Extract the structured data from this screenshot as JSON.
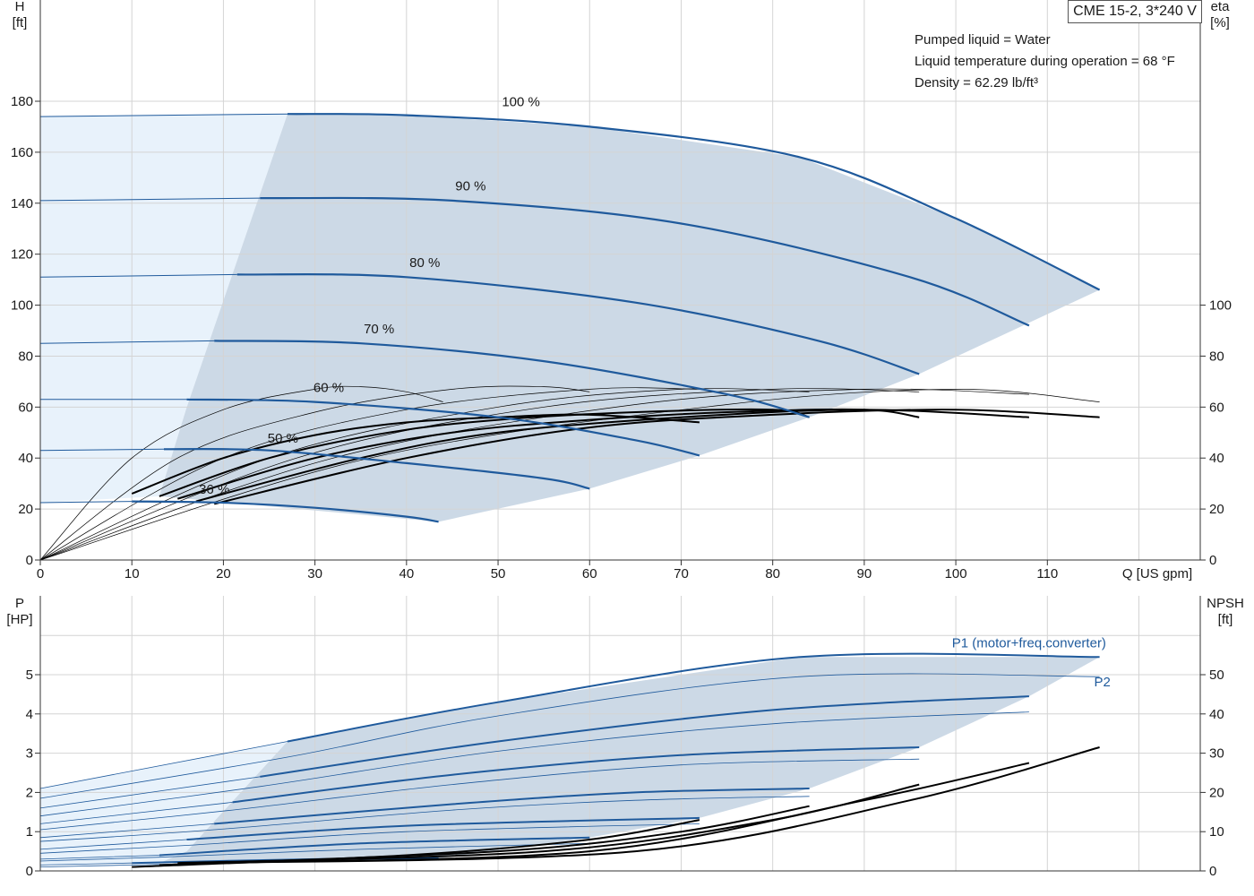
{
  "title": "CME 15-2, 3*240 V",
  "info": {
    "liquid": "Pumped liquid = Water",
    "temperature": "Liquid temperature during operation = 68 °F",
    "density": "Density = 62.29 lb/ft³"
  },
  "colors": {
    "curve": "#1f5a9c",
    "area": "#ccd9e6",
    "area_light": "#e8f2fb",
    "grid": "#d4d4d4",
    "eff": "#000000"
  },
  "chart_data": [
    {
      "type": "line",
      "name": "head-efficiency",
      "xlabel": "Q [US gpm]",
      "ylabel_left": "H",
      "ylabel_left_unit": "[ft]",
      "ylabel_right": "eta",
      "ylabel_right_unit": "[%]",
      "xlim": [
        0,
        126
      ],
      "xticks": [
        0,
        10,
        20,
        30,
        40,
        50,
        60,
        70,
        80,
        90,
        100,
        110
      ],
      "ylim_left": [
        0,
        180
      ],
      "yticks_left": [
        0,
        20,
        40,
        60,
        80,
        100,
        120,
        140,
        160,
        180
      ],
      "ylim_right": [
        0,
        100
      ],
      "yticks_right": [
        0,
        20,
        40,
        60,
        80,
        100
      ],
      "grid": true,
      "speed_labels": [
        {
          "text": "100 %",
          "x": 52.5,
          "y": 178
        },
        {
          "text": "90 %",
          "x": 47,
          "y": 145
        },
        {
          "text": "80 %",
          "x": 42,
          "y": 115
        },
        {
          "text": "70 %",
          "x": 37,
          "y": 89
        },
        {
          "text": "60 %",
          "x": 31.5,
          "y": 66
        },
        {
          "text": "50 %",
          "x": 26.5,
          "y": 46
        },
        {
          "text": "36 %",
          "x": 19,
          "y": 26
        }
      ],
      "series": [
        {
          "speed": 100,
          "x": [
            0,
            27,
            40,
            60,
            83,
            100,
            115.7
          ],
          "y": [
            174,
            175,
            174.5,
            170,
            158,
            134,
            106
          ]
        },
        {
          "speed": 90,
          "x": [
            0,
            24,
            45,
            70,
            95,
            108
          ],
          "y": [
            141,
            142,
            141,
            132,
            111,
            92
          ]
        },
        {
          "speed": 80,
          "x": [
            0,
            21.5,
            40,
            65,
            85,
            96
          ],
          "y": [
            111,
            112,
            111,
            101,
            86,
            73
          ]
        },
        {
          "speed": 70,
          "x": [
            0,
            19,
            35,
            55,
            75,
            84
          ],
          "y": [
            85,
            86,
            85,
            78,
            65,
            56
          ]
        },
        {
          "speed": 60,
          "x": [
            0,
            16,
            30,
            50,
            65,
            72
          ],
          "y": [
            63,
            63,
            62,
            56,
            47,
            41
          ]
        },
        {
          "speed": 50,
          "x": [
            0,
            13.5,
            25,
            40,
            55,
            60
          ],
          "y": [
            43,
            43.5,
            43,
            38,
            32,
            28
          ]
        },
        {
          "speed": 36,
          "x": [
            0,
            10,
            20,
            30,
            40,
            43.5
          ],
          "y": [
            22.5,
            23,
            22.5,
            20.5,
            17,
            15
          ]
        }
      ],
      "eff_bold": [
        {
          "x": [
            10,
            20,
            30,
            40,
            50,
            60,
            72
          ],
          "y": [
            26,
            40,
            49,
            54,
            56,
            57,
            54
          ]
        },
        {
          "x": [
            13,
            25,
            38,
            50,
            65,
            80,
            84
          ],
          "y": [
            25,
            40,
            50,
            55,
            58,
            59,
            56
          ]
        },
        {
          "x": [
            15,
            30,
            45,
            60,
            75,
            90,
            96
          ],
          "y": [
            24,
            40,
            50,
            55,
            58,
            59,
            56
          ]
        },
        {
          "x": [
            17,
            35,
            50,
            70,
            90,
            108
          ],
          "y": [
            23,
            40,
            50,
            56,
            59,
            56
          ]
        },
        {
          "x": [
            19,
            40,
            60,
            80,
            100,
            115.7
          ],
          "y": [
            22,
            40,
            52,
            57,
            59,
            56
          ]
        }
      ],
      "eff_thin": [
        {
          "x": [
            0,
            10,
            20,
            30,
            35,
            40,
            44
          ],
          "y": [
            0,
            40,
            59,
            67,
            68,
            66,
            62
          ]
        },
        {
          "x": [
            0,
            15,
            30,
            45,
            55,
            60
          ],
          "y": [
            0,
            40,
            58,
            67,
            68,
            66
          ]
        },
        {
          "x": [
            0,
            20,
            40,
            60,
            72
          ],
          "y": [
            0,
            40,
            59,
            67,
            67
          ]
        },
        {
          "x": [
            0,
            25,
            50,
            70,
            84
          ],
          "y": [
            0,
            40,
            60,
            67,
            66
          ]
        },
        {
          "x": [
            0,
            28,
            55,
            80,
            96
          ],
          "y": [
            0,
            40,
            60,
            67,
            66
          ]
        },
        {
          "x": [
            0,
            32,
            65,
            90,
            108
          ],
          "y": [
            0,
            40,
            61,
            67,
            65
          ]
        },
        {
          "x": [
            0,
            36,
            75,
            100,
            115.7
          ],
          "y": [
            0,
            40,
            61,
            67,
            62
          ]
        }
      ],
      "area": {
        "x": [
          16,
          27,
          40,
          60,
          83,
          100,
          115.7,
          96,
          84,
          72,
          60,
          43.5,
          13
        ],
        "y": [
          60,
          175,
          174.5,
          170,
          158,
          134,
          106,
          73,
          56,
          41,
          28,
          15,
          25
        ]
      }
    },
    {
      "type": "line",
      "name": "power-npsh",
      "ylabel_left": "P",
      "ylabel_left_unit": "[HP]",
      "ylabel_right": "NPSH",
      "ylabel_right_unit": "[ft]",
      "ylim_left": [
        0,
        6
      ],
      "yticks_left": [
        0,
        1,
        2,
        3,
        4,
        5
      ],
      "ylim_right": [
        0,
        60
      ],
      "yticks_right": [
        0,
        10,
        20,
        30,
        40,
        50
      ],
      "grid": true,
      "labels": [
        {
          "text": "P1 (motor+freq.converter)",
          "x": 108,
          "y": 5.7
        },
        {
          "text": "P2",
          "x": 116,
          "y": 4.7
        }
      ],
      "p1": [
        {
          "x": [
            0,
            27,
            50,
            83,
            115.7
          ],
          "y": [
            2.1,
            3.3,
            4.3,
            5.45,
            5.45
          ]
        },
        {
          "x": [
            0,
            24,
            50,
            80,
            108
          ],
          "y": [
            1.6,
            2.4,
            3.3,
            4.1,
            4.45
          ]
        },
        {
          "x": [
            0,
            21,
            45,
            70,
            96
          ],
          "y": [
            1.2,
            1.75,
            2.45,
            2.95,
            3.15
          ]
        },
        {
          "x": [
            0,
            19,
            45,
            65,
            84
          ],
          "y": [
            0.85,
            1.2,
            1.7,
            2.0,
            2.1
          ]
        },
        {
          "x": [
            0,
            16,
            40,
            72
          ],
          "y": [
            0.55,
            0.8,
            1.15,
            1.35
          ]
        },
        {
          "x": [
            0,
            13,
            35,
            60
          ],
          "y": [
            0.3,
            0.4,
            0.7,
            0.85
          ]
        },
        {
          "x": [
            0,
            10,
            30,
            43.5
          ],
          "y": [
            0.15,
            0.2,
            0.3,
            0.32
          ]
        }
      ],
      "p2": [
        {
          "x": [
            0,
            27,
            50,
            83,
            115.7
          ],
          "y": [
            1.85,
            2.9,
            3.95,
            4.95,
            4.95
          ]
        },
        {
          "x": [
            0,
            24,
            50,
            80,
            108
          ],
          "y": [
            1.4,
            2.15,
            3.05,
            3.75,
            4.05
          ]
        },
        {
          "x": [
            0,
            21,
            45,
            70,
            96
          ],
          "y": [
            1.05,
            1.55,
            2.2,
            2.7,
            2.85
          ]
        },
        {
          "x": [
            0,
            19,
            45,
            65,
            84
          ],
          "y": [
            0.75,
            1.05,
            1.55,
            1.8,
            1.9
          ]
        },
        {
          "x": [
            0,
            16,
            40,
            72
          ],
          "y": [
            0.45,
            0.65,
            1.0,
            1.2
          ]
        },
        {
          "x": [
            0,
            13,
            35,
            60
          ],
          "y": [
            0.25,
            0.35,
            0.55,
            0.7
          ]
        },
        {
          "x": [
            0,
            10,
            30,
            43.5
          ],
          "y": [
            0.1,
            0.15,
            0.25,
            0.28
          ]
        }
      ],
      "npsh": [
        {
          "x": [
            10,
            40,
            60,
            72
          ],
          "y": [
            1,
            4,
            8,
            13
          ]
        },
        {
          "x": [
            13,
            50,
            70,
            84
          ],
          "y": [
            1.5,
            5,
            10,
            16.5
          ]
        },
        {
          "x": [
            15,
            55,
            80,
            96
          ],
          "y": [
            2,
            5,
            13,
            22
          ]
        },
        {
          "x": [
            17,
            60,
            90,
            108
          ],
          "y": [
            2,
            5,
            18,
            27.5
          ]
        },
        {
          "x": [
            19,
            65,
            95,
            115.7
          ],
          "y": [
            2,
            5,
            18,
            31.5
          ]
        }
      ],
      "area": {
        "x": [
          16,
          27,
          50,
          83,
          115.7,
          108,
          96,
          84,
          72,
          60,
          43.5,
          13
        ],
        "y": [
          0.5,
          3.3,
          4.3,
          5.45,
          5.45,
          4.45,
          3.15,
          2.1,
          1.35,
          0.85,
          0.32,
          0.2
        ]
      }
    }
  ]
}
